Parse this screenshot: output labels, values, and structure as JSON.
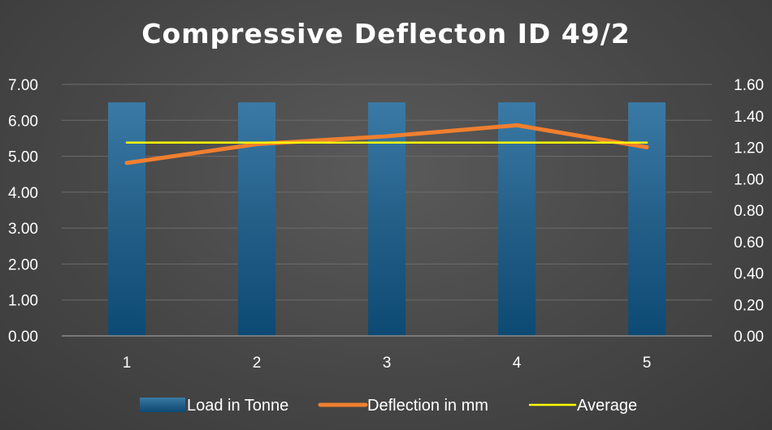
{
  "chart_data": {
    "type": "bar",
    "title": "Compressive Deflecton ID 49/2",
    "categories": [
      "1",
      "2",
      "3",
      "4",
      "5"
    ],
    "series": [
      {
        "name": "Load in Tonne",
        "type": "bar",
        "axis": "left",
        "values": [
          6.5,
          6.5,
          6.5,
          6.5,
          6.5
        ],
        "color": "#2e6e9a"
      },
      {
        "name": "Deflection in mm",
        "type": "line",
        "axis": "right",
        "values": [
          1.1,
          1.22,
          1.27,
          1.34,
          1.2
        ],
        "color": "#f07f2f"
      },
      {
        "name": "Average",
        "type": "line",
        "axis": "right",
        "values": [
          1.23,
          1.23,
          1.23,
          1.23,
          1.23
        ],
        "color": "#ffff00"
      }
    ],
    "y_left": {
      "ylim": [
        0,
        7
      ],
      "ticks": [
        "0.00",
        "1.00",
        "2.00",
        "3.00",
        "4.00",
        "5.00",
        "6.00",
        "7.00"
      ]
    },
    "y_right": {
      "ylim": [
        0,
        1.6
      ],
      "ticks": [
        "0.00",
        "0.20",
        "0.40",
        "0.60",
        "0.80",
        "1.00",
        "1.20",
        "1.40",
        "1.60"
      ]
    },
    "grid": true,
    "legend_position": "bottom",
    "background_color": "#474747",
    "text_color": "#ffffff"
  }
}
